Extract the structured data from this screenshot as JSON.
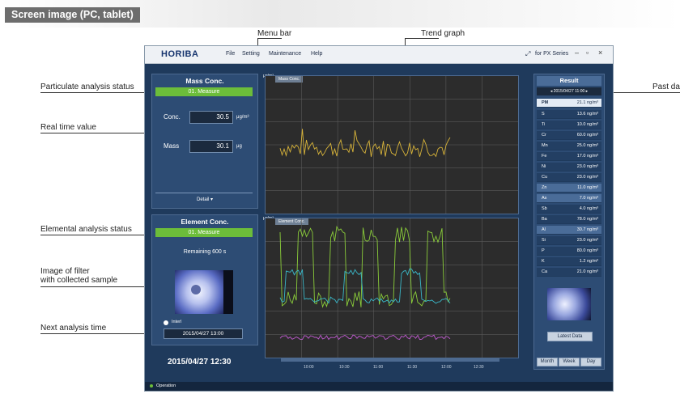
{
  "banner": {
    "title": "Screen image (PC, tablet)"
  },
  "callouts": {
    "menu_bar": "Menu bar",
    "trend_graph": "Trend graph",
    "particulate_status": "Particulate analysis status",
    "real_time_value": "Real time value",
    "elemental_status": "Elemental analysis status",
    "filter_image": "Image of filter\nwith collected sample",
    "next_time": "Next analysis time",
    "past_data": "Past da"
  },
  "app": {
    "logo": "HORIBA",
    "menu": [
      "File",
      "Setting",
      "Maintenance",
      "Help"
    ],
    "win_info": "for PX Series",
    "mass": {
      "title": "Mass Conc.",
      "status": "01. Measure",
      "conc_label": "Conc.",
      "conc_value": "30.5",
      "conc_unit": "μg/m³",
      "mass_label": "Mass",
      "mass_value": "30.1",
      "mass_unit": "μg",
      "detail": "Detail ▾"
    },
    "element": {
      "title": "Element Conc.",
      "status": "01. Measure",
      "remaining": "Remaining 600 s",
      "next_label": "Interl",
      "next_time": "2015/04/27 13:00"
    },
    "datetime": "2015/04/27 12:30",
    "footer": "Operation",
    "charts": {
      "mass_tab": "Mass Conc.",
      "element_tab": "Element Conc.",
      "unit": "μg/m³",
      "time_labels": [
        "10:00",
        "10:30",
        "11:00",
        "11:30",
        "12:00",
        "12:30"
      ]
    },
    "result": {
      "title": "Result",
      "date": "2015/04/27 11:00",
      "pm_label": "PM",
      "pm_value": "21.1",
      "unit": "ng/m³",
      "rows": [
        {
          "el": "S",
          "v": "13.6"
        },
        {
          "el": "Ti",
          "v": "10.0"
        },
        {
          "el": "Cr",
          "v": "60.0"
        },
        {
          "el": "Mn",
          "v": "25.0"
        },
        {
          "el": "Fe",
          "v": "17.0"
        },
        {
          "el": "Ni",
          "v": "23.0"
        },
        {
          "el": "Cu",
          "v": "23.0"
        },
        {
          "el": "Zn",
          "v": "11.0"
        },
        {
          "el": "As",
          "v": "7.0"
        },
        {
          "el": "Sb",
          "v": "4.0"
        },
        {
          "el": "Ba",
          "v": "78.0"
        },
        {
          "el": "Al",
          "v": "30.7"
        },
        {
          "el": "Si",
          "v": "23.0"
        },
        {
          "el": "P",
          "v": "80.0"
        },
        {
          "el": "K",
          "v": "1.2"
        },
        {
          "el": "Ca",
          "v": "21.0"
        }
      ],
      "latest_button": "Latest Data",
      "nav_buttons": [
        "Month",
        "Week",
        "Day"
      ]
    }
  }
}
